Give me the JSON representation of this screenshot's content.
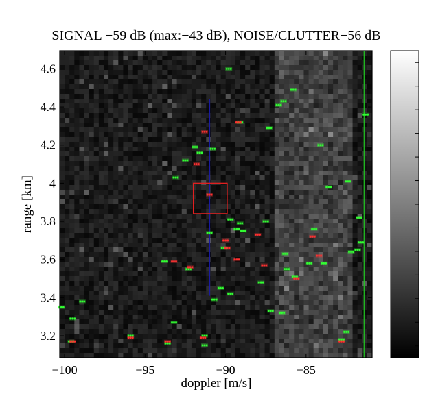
{
  "chart_data": {
    "type": "heatmap",
    "title": "SIGNAL −59 dB (max:−43 dB), NOISE/CLUTTER−56 dB",
    "xlabel": "doppler [m/s]",
    "ylabel": "range [km]",
    "xlim": [
      -100.3,
      -80.9
    ],
    "ylim": [
      3.085,
      4.695
    ],
    "xticks": [
      -100,
      -95,
      -90,
      -85
    ],
    "xtick_labels": [
      "−100",
      "−95",
      "−90",
      "−85"
    ],
    "yticks": [
      3.2,
      3.4,
      3.6,
      3.8,
      4.0,
      4.2,
      4.4,
      4.6
    ],
    "ytick_labels": [
      "3.2",
      "3.4",
      "3.6",
      "3.8",
      "4",
      "4.2",
      "4.4",
      "4.6"
    ],
    "colormap": "gray",
    "colorbar_tick_count": 13,
    "grid": false,
    "background_clutter_band_x": [
      -87,
      -82
    ],
    "overlays": {
      "target_box": {
        "x": [
          -92,
          -89.9
        ],
        "y": [
          3.84,
          4.0
        ],
        "color": "#e02020"
      },
      "blue_line": {
        "x": -91.0,
        "y": [
          3.41,
          4.44
        ],
        "color": "#1a1aa0"
      },
      "green_line": {
        "x": -81.4,
        "y": [
          3.085,
          4.695
        ],
        "color": "#22cc22"
      }
    },
    "detections_green": [
      [
        -99.5,
        3.29
      ],
      [
        -98.9,
        3.38
      ],
      [
        -100.2,
        3.35
      ],
      [
        -99.6,
        3.17
      ],
      [
        -95.9,
        3.2
      ],
      [
        -93.6,
        3.16
      ],
      [
        -91.3,
        3.15
      ],
      [
        -91.3,
        3.2
      ],
      [
        -93.2,
        3.27
      ],
      [
        -93.8,
        3.59
      ],
      [
        -92.3,
        3.55
      ],
      [
        -91.0,
        3.74
      ],
      [
        -90.7,
        3.39
      ],
      [
        -90.3,
        3.45
      ],
      [
        -89.7,
        3.42
      ],
      [
        -90.1,
        3.66
      ],
      [
        -89.7,
        3.81
      ],
      [
        -89.3,
        3.76
      ],
      [
        -89.1,
        3.79
      ],
      [
        -88.9,
        3.75
      ],
      [
        -87.8,
        3.48
      ],
      [
        -87.5,
        3.8
      ],
      [
        -87.2,
        3.33
      ],
      [
        -86.5,
        3.32
      ],
      [
        -86.3,
        3.63
      ],
      [
        -86.2,
        3.55
      ],
      [
        -85.7,
        3.51
      ],
      [
        -84.5,
        3.76
      ],
      [
        -83.9,
        3.58
      ],
      [
        -82.8,
        3.18
      ],
      [
        -82.5,
        3.22
      ],
      [
        -81.8,
        3.65
      ],
      [
        -81.6,
        3.69
      ],
      [
        -82.2,
        3.64
      ],
      [
        -93.1,
        4.03
      ],
      [
        -92.5,
        4.12
      ],
      [
        -91.9,
        4.19
      ],
      [
        -91.6,
        4.16
      ],
      [
        -90.8,
        4.18
      ],
      [
        -89.8,
        4.6
      ],
      [
        -89.1,
        4.32
      ],
      [
        -86.7,
        4.41
      ],
      [
        -86.4,
        4.43
      ],
      [
        -87.3,
        4.29
      ],
      [
        -85.8,
        4.49
      ],
      [
        -84.1,
        4.2
      ],
      [
        -83.6,
        3.98
      ],
      [
        -82.4,
        4.01
      ],
      [
        -84.8,
        3.58
      ],
      [
        -81.7,
        3.82
      ],
      [
        -81.3,
        4.36
      ]
    ],
    "detections_red": [
      [
        -99.5,
        3.17
      ],
      [
        -95.9,
        3.19
      ],
      [
        -93.6,
        3.17
      ],
      [
        -91.4,
        3.19
      ],
      [
        -93.2,
        3.59
      ],
      [
        -92.2,
        3.56
      ],
      [
        -91.0,
        3.94
      ],
      [
        -90.0,
        3.7
      ],
      [
        -89.9,
        3.66
      ],
      [
        -89.3,
        3.6
      ],
      [
        -88.0,
        3.73
      ],
      [
        -87.6,
        3.57
      ],
      [
        -85.6,
        3.5
      ],
      [
        -84.2,
        3.62
      ],
      [
        -84.6,
        3.72
      ],
      [
        -91.3,
        4.27
      ],
      [
        -91.8,
        4.1
      ],
      [
        -89.2,
        4.32
      ],
      [
        -82.8,
        3.17
      ]
    ]
  }
}
